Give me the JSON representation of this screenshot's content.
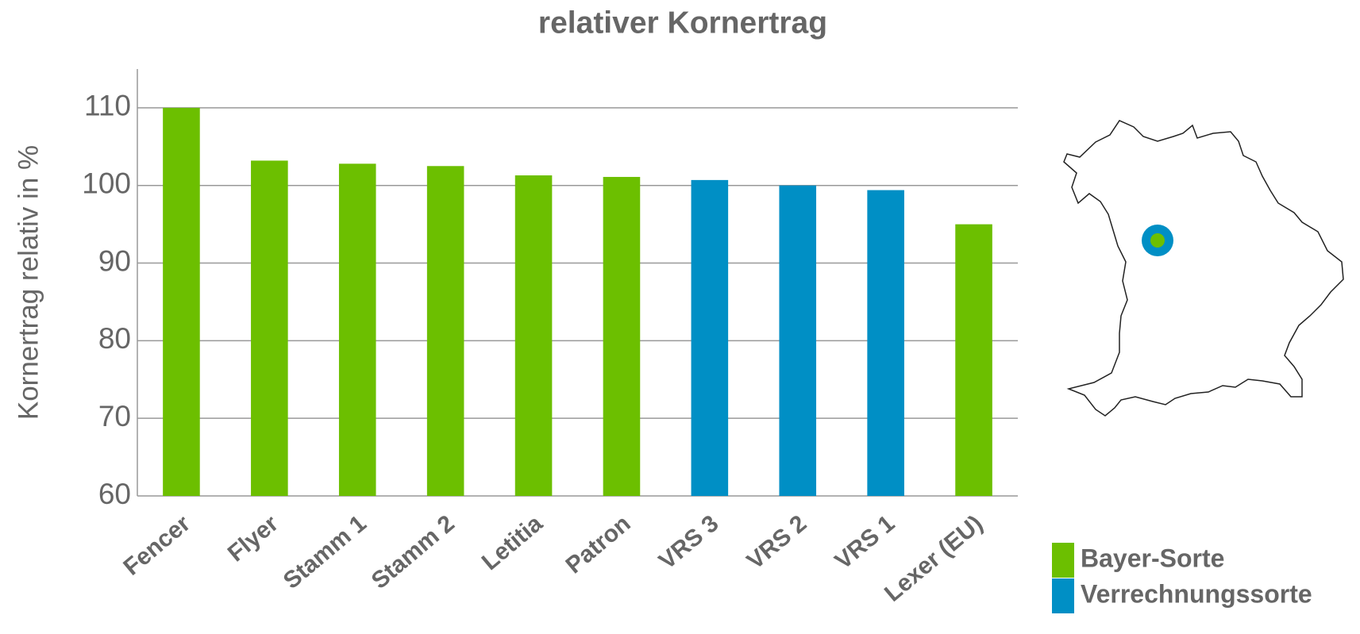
{
  "chart_data": {
    "type": "bar",
    "title": "relativer Kornertrag",
    "y_label": "Kornertrag relativ in %",
    "categories": [
      "Fencer",
      "Flyer",
      "Stamm 1",
      "Stamm 2",
      "Letitia",
      "Patron",
      "VRS 3",
      "VRS 2",
      "VRS 1",
      "Lexer (EU)"
    ],
    "values": [
      110,
      103.2,
      102.8,
      102.5,
      101.3,
      101.1,
      100.7,
      100,
      99.4,
      95
    ],
    "colors": [
      "#6cbf00",
      "#6cbf00",
      "#6cbf00",
      "#6cbf00",
      "#6cbf00",
      "#6cbf00",
      "#008fc5",
      "#008fc5",
      "#008fc5",
      "#6cbf00"
    ],
    "legend": [
      {
        "name": "Bayer-Sorte",
        "color": "#6cbf00"
      },
      {
        "name": "Verrechnungssorte",
        "color": "#008fc5"
      }
    ],
    "ylim": [
      60,
      115
    ],
    "yticks": [
      60,
      70,
      80,
      90,
      100,
      110
    ],
    "grid": true
  }
}
